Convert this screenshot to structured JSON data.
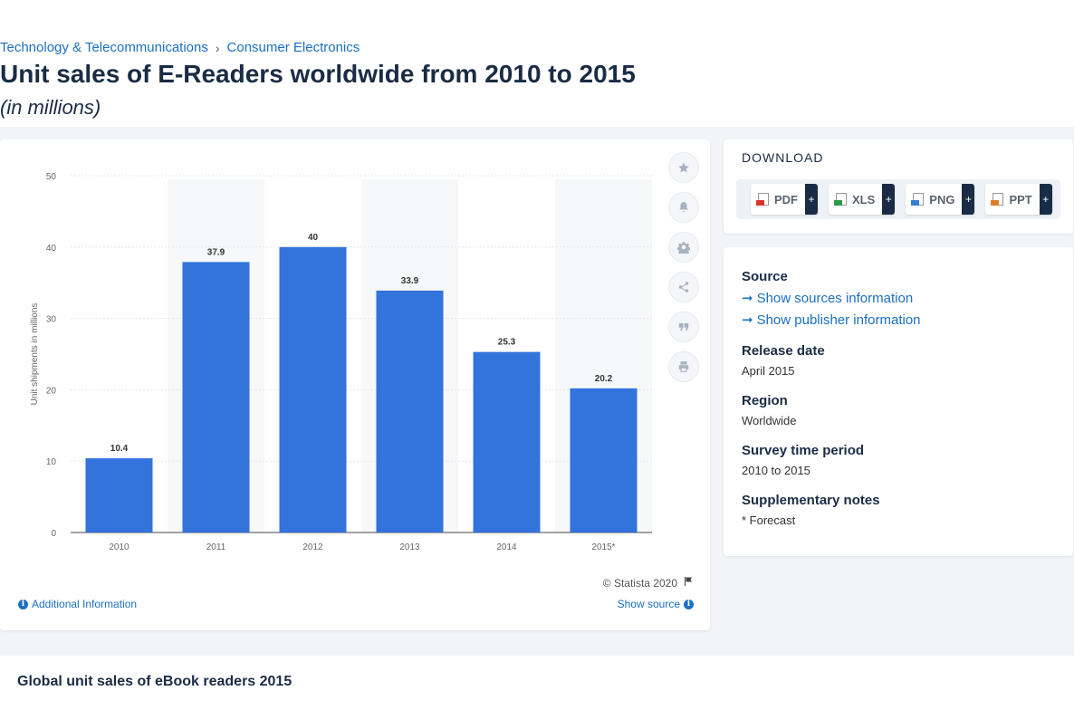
{
  "breadcrumb": {
    "category": "Technology & Telecommunications",
    "separator": "›",
    "subcategory": "Consumer Electronics"
  },
  "title": "Unit sales of E-Readers worldwide from 2010 to 2015",
  "subtitle": "(in millions)",
  "chart_data": {
    "type": "bar",
    "categories": [
      "2010",
      "2011",
      "2012",
      "2013",
      "2014",
      "2015*"
    ],
    "values": [
      10.4,
      37.9,
      40,
      33.9,
      25.3,
      20.2
    ],
    "value_labels": [
      "10.4",
      "37.9",
      "40",
      "33.9",
      "25.3",
      "20.2"
    ],
    "ylabel": "Unit shipments in millions",
    "ylim": [
      0,
      50
    ],
    "yticks": [
      0,
      10,
      20,
      30,
      40,
      50
    ],
    "grid": true,
    "bar_color": "#3273dc"
  },
  "chart_footer": {
    "copyright": "© Statista 2020",
    "additional_info": "Additional Information",
    "show_source": "Show source"
  },
  "tools": [
    "star-icon",
    "bell-icon",
    "gear-icon",
    "share-icon",
    "quote-icon",
    "print-icon"
  ],
  "download": {
    "title": "DOWNLOAD",
    "buttons": [
      {
        "label": "PDF",
        "badge_color": "#d9342b"
      },
      {
        "label": "XLS",
        "badge_color": "#2e9b48"
      },
      {
        "label": "PNG",
        "badge_color": "#3a7bd5"
      },
      {
        "label": "PPT",
        "badge_color": "#e07b2a"
      }
    ],
    "plus": "+"
  },
  "info": {
    "source_label": "Source",
    "show_sources": "Show sources information",
    "show_publisher": "Show publisher information",
    "release_label": "Release date",
    "release_value": "April 2015",
    "region_label": "Region",
    "region_value": "Worldwide",
    "survey_label": "Survey time period",
    "survey_value": "2010 to 2015",
    "notes_label": "Supplementary notes",
    "notes_value": "* Forecast"
  },
  "related": {
    "title": "Global unit sales of eBook readers 2015"
  }
}
